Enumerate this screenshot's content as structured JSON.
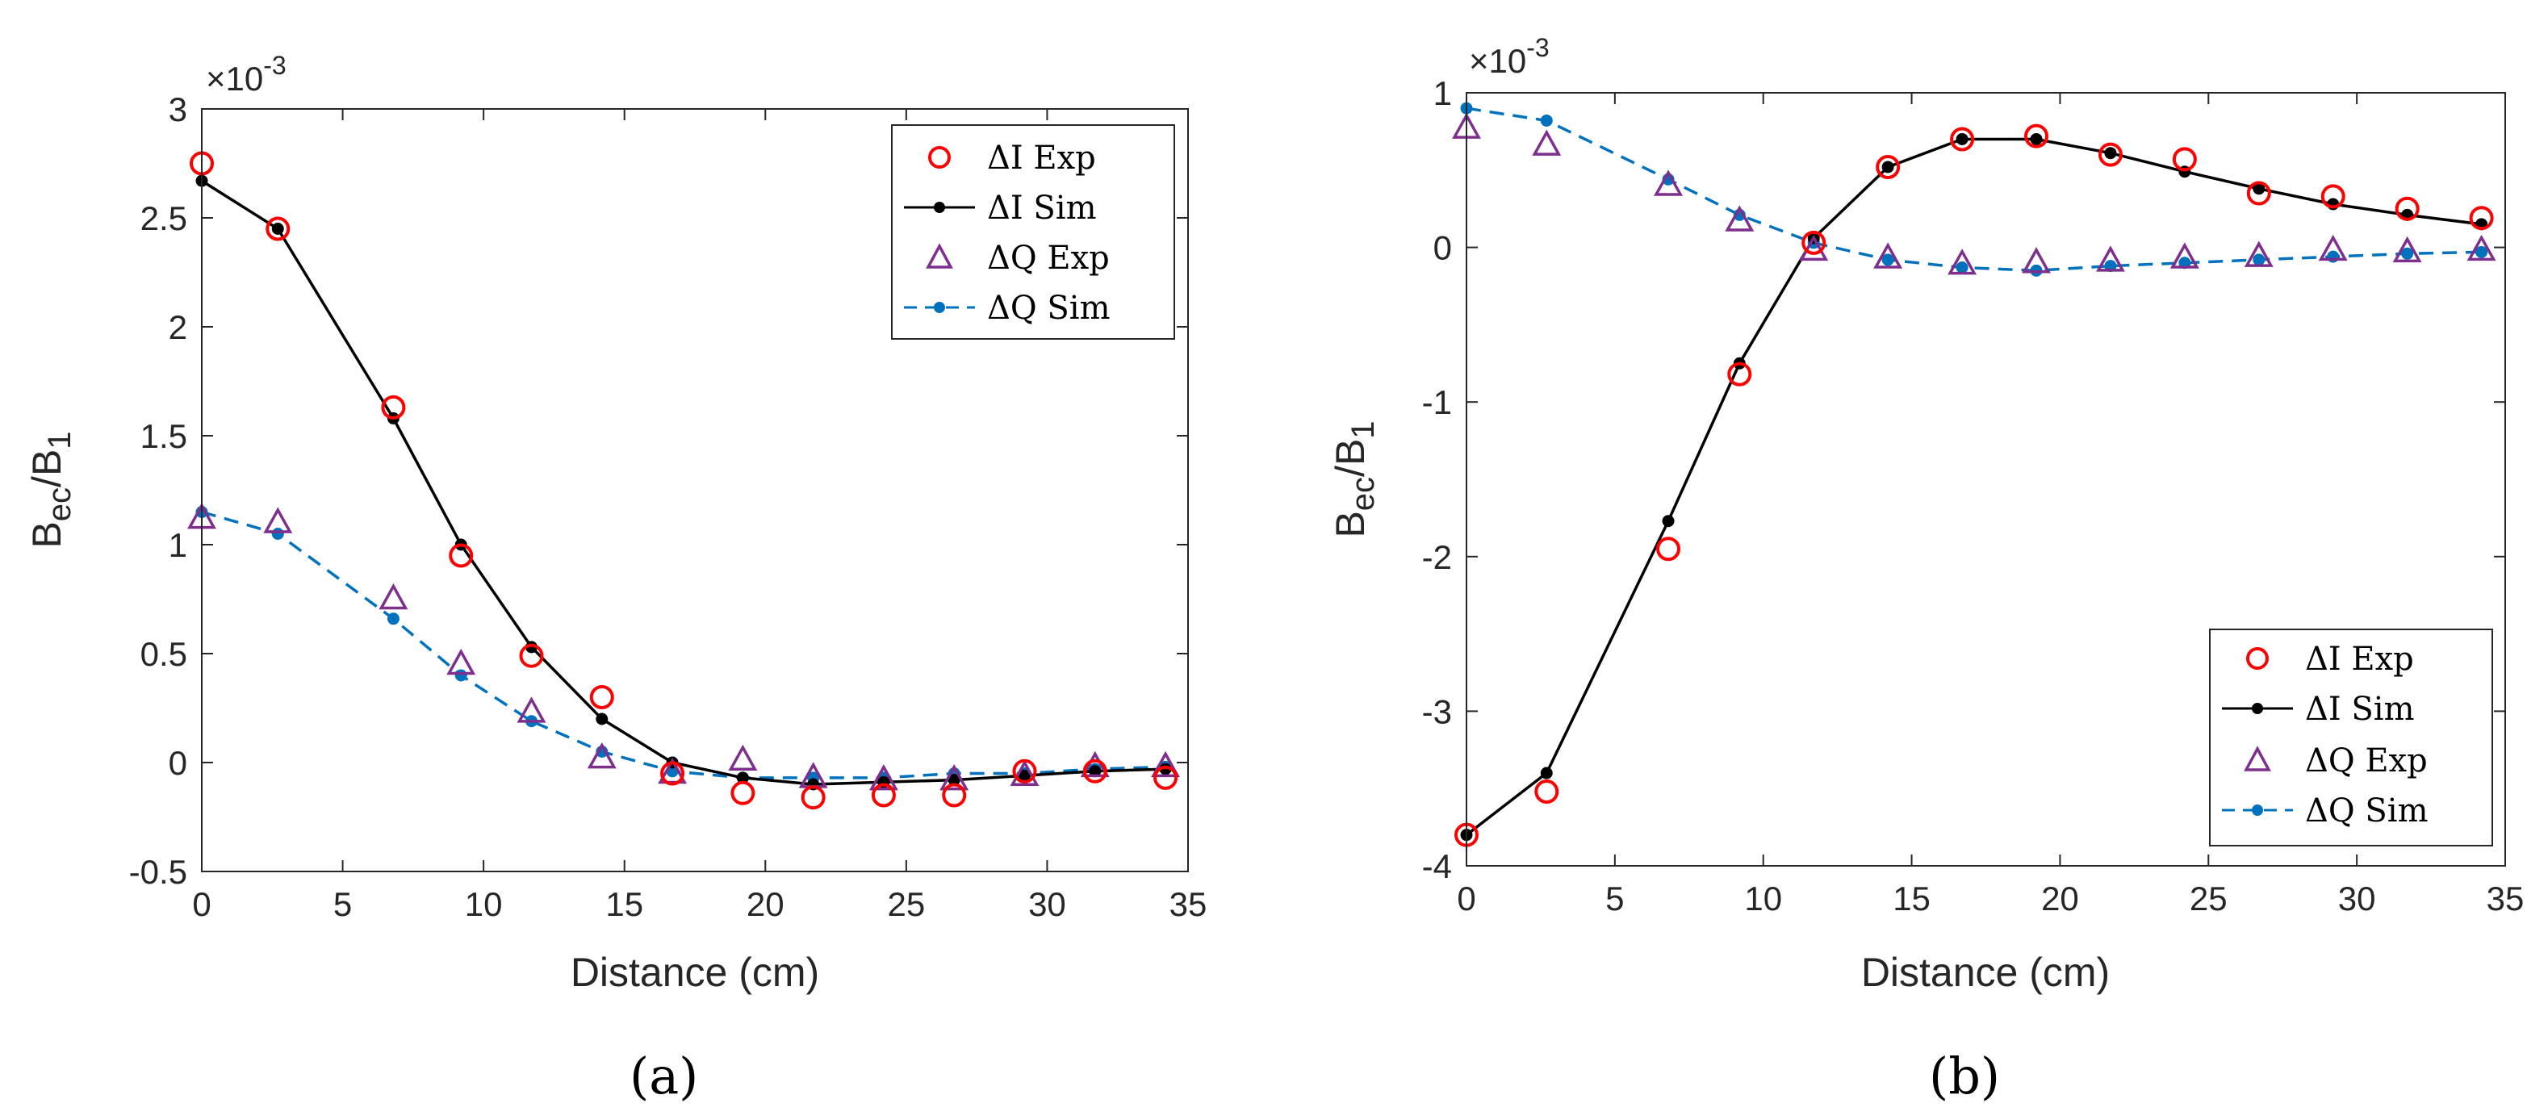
{
  "colors": {
    "i_exp": "#ff0000",
    "i_sim": "#000000",
    "q_exp": "#7e2f8e",
    "q_sim": "#0072bd",
    "axis": "#262626",
    "legend_border": "#262626"
  },
  "legend_markers": {
    "i_exp": "○",
    "i_sim": "●",
    "q_exp": "△",
    "q_sim": "●"
  },
  "chart_data": [
    {
      "type": "line",
      "panel_label": "(a)",
      "title": "",
      "xlabel": "Distance (cm)",
      "ylabel": {
        "main": "B",
        "sub1": "ec",
        "sep": "/B",
        "sub2": "1"
      },
      "exponent": {
        "base": "×10",
        "power": "-3"
      },
      "xlim": [
        0,
        35
      ],
      "ylim": [
        -0.5,
        3
      ],
      "xticks": [
        0,
        5,
        10,
        15,
        20,
        25,
        30,
        35
      ],
      "xtick_labels": [
        "0",
        "5",
        "10",
        "15",
        "20",
        "25",
        "30",
        "35"
      ],
      "yticks": [
        -0.5,
        0,
        0.5,
        1,
        1.5,
        2,
        2.5,
        3
      ],
      "ytick_labels": [
        "-0.5",
        "0",
        "0.5",
        "1",
        "1.5",
        "2",
        "2.5",
        "3"
      ],
      "legend_position": "top-right",
      "x": [
        0,
        2.7,
        6.8,
        9.2,
        11.7,
        14.2,
        16.7,
        19.2,
        21.7,
        24.2,
        26.7,
        29.2,
        31.7,
        34.2
      ],
      "series": [
        {
          "key": "i_exp",
          "name": "ΔI Exp",
          "style": "circle",
          "values": [
            2.75,
            2.45,
            1.63,
            0.95,
            0.49,
            0.3,
            -0.05,
            -0.14,
            -0.16,
            -0.15,
            -0.15,
            -0.04,
            -0.04,
            -0.07
          ]
        },
        {
          "key": "i_sim",
          "name": "ΔI Sim",
          "style": "solid-dot",
          "values": [
            2.67,
            2.45,
            1.58,
            1.0,
            0.53,
            0.2,
            0.0,
            -0.07,
            -0.1,
            -0.09,
            -0.08,
            -0.06,
            -0.04,
            -0.03
          ]
        },
        {
          "key": "q_exp",
          "name": "ΔQ Exp",
          "style": "triangle",
          "values": [
            1.12,
            1.1,
            0.75,
            0.45,
            0.23,
            0.02,
            -0.05,
            0.01,
            -0.07,
            -0.08,
            -0.08,
            -0.06,
            -0.02,
            -0.02
          ]
        },
        {
          "key": "q_sim",
          "name": "ΔQ Sim",
          "style": "dashed-dot",
          "values": [
            1.15,
            1.05,
            0.66,
            0.4,
            0.19,
            0.05,
            -0.04,
            -0.07,
            -0.07,
            -0.07,
            -0.05,
            -0.05,
            -0.03,
            -0.02
          ]
        }
      ]
    },
    {
      "type": "line",
      "panel_label": "(b)",
      "title": "",
      "xlabel": "Distance (cm)",
      "ylabel": {
        "main": "B",
        "sub1": "ec",
        "sep": "/B",
        "sub2": "1"
      },
      "exponent": {
        "base": "×10",
        "power": "-3"
      },
      "xlim": [
        0,
        35
      ],
      "ylim": [
        -4,
        1
      ],
      "xticks": [
        0,
        5,
        10,
        15,
        20,
        25,
        30,
        35
      ],
      "xtick_labels": [
        "0",
        "5",
        "10",
        "15",
        "20",
        "25",
        "30",
        "35"
      ],
      "yticks": [
        -4,
        -3,
        -2,
        -1,
        0,
        1
      ],
      "ytick_labels": [
        "-4",
        "-3",
        "-2",
        "-1",
        "0",
        "1"
      ],
      "legend_position": "bottom-right",
      "x": [
        0,
        2.7,
        6.8,
        9.2,
        11.7,
        14.2,
        16.7,
        19.2,
        21.7,
        24.2,
        26.7,
        29.2,
        31.7,
        34.2
      ],
      "series": [
        {
          "key": "i_exp",
          "name": "ΔI Exp",
          "style": "circle",
          "values": [
            -3.8,
            -3.52,
            -1.95,
            -0.82,
            0.03,
            0.52,
            0.7,
            0.72,
            0.6,
            0.57,
            0.35,
            0.33,
            0.25,
            0.19
          ]
        },
        {
          "key": "i_sim",
          "name": "ΔI Sim",
          "style": "solid-dot",
          "values": [
            -3.8,
            -3.4,
            -1.77,
            -0.75,
            0.06,
            0.52,
            0.7,
            0.7,
            0.61,
            0.49,
            0.38,
            0.28,
            0.21,
            0.15
          ]
        },
        {
          "key": "q_exp",
          "name": "ΔQ Exp",
          "style": "triangle",
          "values": [
            0.77,
            0.66,
            0.4,
            0.17,
            -0.02,
            -0.07,
            -0.11,
            -0.1,
            -0.09,
            -0.07,
            -0.06,
            -0.02,
            -0.03,
            -0.02
          ]
        },
        {
          "key": "q_sim",
          "name": "ΔQ Sim",
          "style": "dashed-dot",
          "values": [
            0.9,
            0.82,
            0.44,
            0.21,
            0.03,
            -0.08,
            -0.13,
            -0.15,
            -0.12,
            -0.1,
            -0.08,
            -0.06,
            -0.04,
            -0.03
          ]
        }
      ]
    }
  ]
}
